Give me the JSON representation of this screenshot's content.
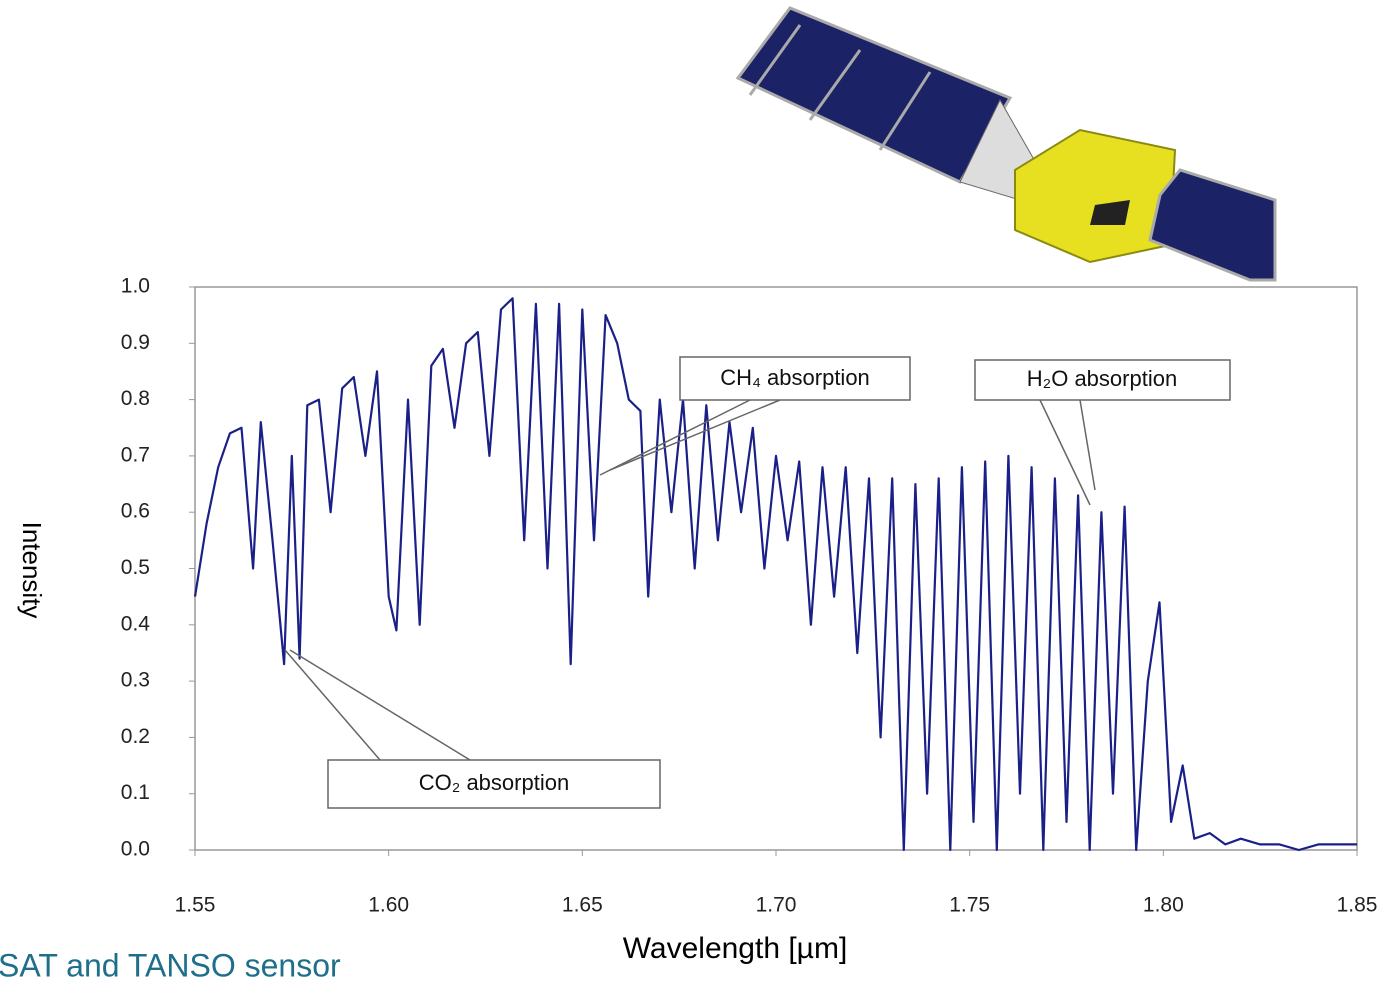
{
  "chart_data": {
    "type": "line",
    "ylabel": "Intensity",
    "xlabel": "Wavelength [µm]",
    "caption": "SAT and TANSO sensor",
    "annotations": [
      "CH₄ absorption",
      "H₂O absorption",
      "CO₂ absorption"
    ],
    "x": [
      1.55,
      1.553,
      1.556,
      1.559,
      1.562,
      1.565,
      1.567,
      1.57,
      1.573,
      1.575,
      1.577,
      1.579,
      1.582,
      1.585,
      1.588,
      1.591,
      1.594,
      1.597,
      1.6,
      1.602,
      1.605,
      1.608,
      1.611,
      1.614,
      1.617,
      1.62,
      1.623,
      1.626,
      1.629,
      1.632,
      1.635,
      1.638,
      1.641,
      1.644,
      1.647,
      1.65,
      1.653,
      1.656,
      1.659,
      1.662,
      1.665,
      1.667,
      1.67,
      1.673,
      1.676,
      1.679,
      1.682,
      1.685,
      1.688,
      1.691,
      1.694,
      1.697,
      1.7,
      1.703,
      1.706,
      1.709,
      1.712,
      1.715,
      1.718,
      1.721,
      1.724,
      1.727,
      1.73,
      1.733,
      1.736,
      1.739,
      1.742,
      1.745,
      1.748,
      1.751,
      1.754,
      1.757,
      1.76,
      1.763,
      1.766,
      1.769,
      1.772,
      1.775,
      1.778,
      1.781,
      1.784,
      1.787,
      1.79,
      1.793,
      1.796,
      1.799,
      1.802,
      1.805,
      1.808,
      1.812,
      1.816,
      1.82,
      1.825,
      1.83,
      1.835,
      1.84,
      1.845,
      1.85
    ],
    "series": [
      {
        "color": "#1b2088",
        "values": [
          0.45,
          0.58,
          0.68,
          0.74,
          0.75,
          0.5,
          0.76,
          0.55,
          0.33,
          0.7,
          0.34,
          0.79,
          0.8,
          0.6,
          0.82,
          0.84,
          0.7,
          0.85,
          0.45,
          0.39,
          0.8,
          0.4,
          0.86,
          0.89,
          0.75,
          0.9,
          0.92,
          0.7,
          0.96,
          0.98,
          0.55,
          0.97,
          0.5,
          0.97,
          0.33,
          0.96,
          0.55,
          0.95,
          0.9,
          0.8,
          0.78,
          0.45,
          0.8,
          0.6,
          0.8,
          0.5,
          0.79,
          0.55,
          0.76,
          0.6,
          0.75,
          0.5,
          0.7,
          0.55,
          0.69,
          0.4,
          0.68,
          0.45,
          0.68,
          0.35,
          0.66,
          0.2,
          0.66,
          0.0,
          0.65,
          0.1,
          0.66,
          0.0,
          0.68,
          0.05,
          0.69,
          0.0,
          0.7,
          0.1,
          0.68,
          0.0,
          0.66,
          0.05,
          0.63,
          0.0,
          0.6,
          0.1,
          0.61,
          0.0,
          0.3,
          0.44,
          0.05,
          0.15,
          0.02,
          0.03,
          0.01,
          0.02,
          0.01,
          0.01,
          0.0,
          0.01,
          0.01,
          0.01
        ]
      }
    ],
    "xlim": [
      1.55,
      1.85
    ],
    "ylim": [
      0,
      1.0
    ],
    "xticks": [
      1.55,
      {
        "value": 1.6,
        "label": "1.60"
      },
      1.65,
      {
        "value": 1.7,
        "label": "1.70"
      },
      1.75,
      {
        "value": 1.8,
        "label": "1.80"
      },
      1.85
    ],
    "yticks": [
      {
        "value": 0,
        "label": "0.0"
      },
      0.1,
      0.2,
      0.3,
      0.4,
      0.5,
      0.6,
      0.7,
      0.8,
      0.9,
      {
        "value": 1,
        "label": "1.0"
      }
    ]
  }
}
